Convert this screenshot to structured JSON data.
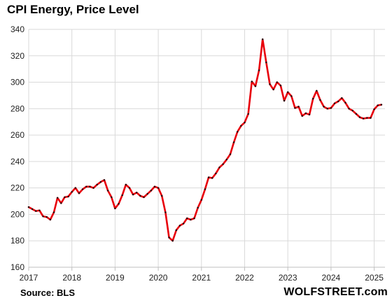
{
  "chart_data": {
    "type": "line",
    "title": "CPI Energy, Price Level",
    "source": "Source: BLS",
    "brand": "WOLFSTREET.com",
    "ylim": [
      160,
      340
    ],
    "yticks": [
      160,
      180,
      200,
      220,
      240,
      260,
      280,
      300,
      320,
      340
    ],
    "xlim": [
      2017,
      2025.25
    ],
    "xticks": [
      2017,
      2018,
      2019,
      2020,
      2021,
      2022,
      2023,
      2024,
      2025
    ],
    "grid": true,
    "colors": {
      "line": "#e8000b",
      "marker": "#111111",
      "grid": "#d9d9d9",
      "axis": "#bfbfbf"
    },
    "series": [
      {
        "start": "2017-01",
        "frequency": "monthly",
        "values": [
          205.5,
          204.0,
          202.5,
          203.0,
          198.5,
          198.0,
          196.0,
          201.5,
          212.5,
          208.5,
          213.0,
          213.5,
          217.0,
          220.0,
          216.0,
          219.0,
          221.0,
          221.0,
          220.0,
          222.5,
          224.5,
          226.0,
          218.0,
          213.0,
          204.5,
          208.0,
          214.5,
          222.5,
          220.0,
          215.0,
          216.5,
          214.0,
          213.0,
          215.5,
          218.0,
          221.0,
          220.0,
          214.0,
          201.5,
          182.5,
          180.0,
          188.0,
          191.5,
          193.0,
          197.0,
          196.0,
          197.0,
          205.0,
          211.0,
          219.0,
          228.0,
          227.5,
          231.0,
          235.5,
          238.0,
          241.5,
          245.5,
          254.5,
          262.5,
          267.0,
          269.5,
          276.0,
          300.5,
          297.0,
          309.0,
          332.5,
          315.0,
          298.5,
          294.5,
          300.0,
          297.5,
          286.0,
          292.5,
          289.5,
          280.5,
          281.5,
          274.5,
          276.5,
          275.5,
          287.5,
          293.5,
          286.5,
          281.5,
          280.0,
          280.5,
          284.0,
          285.5,
          288.0,
          284.5,
          280.0,
          278.5,
          276.0,
          273.5,
          272.5,
          273.0,
          273.0,
          279.5,
          282.5,
          283.0
        ]
      }
    ]
  }
}
